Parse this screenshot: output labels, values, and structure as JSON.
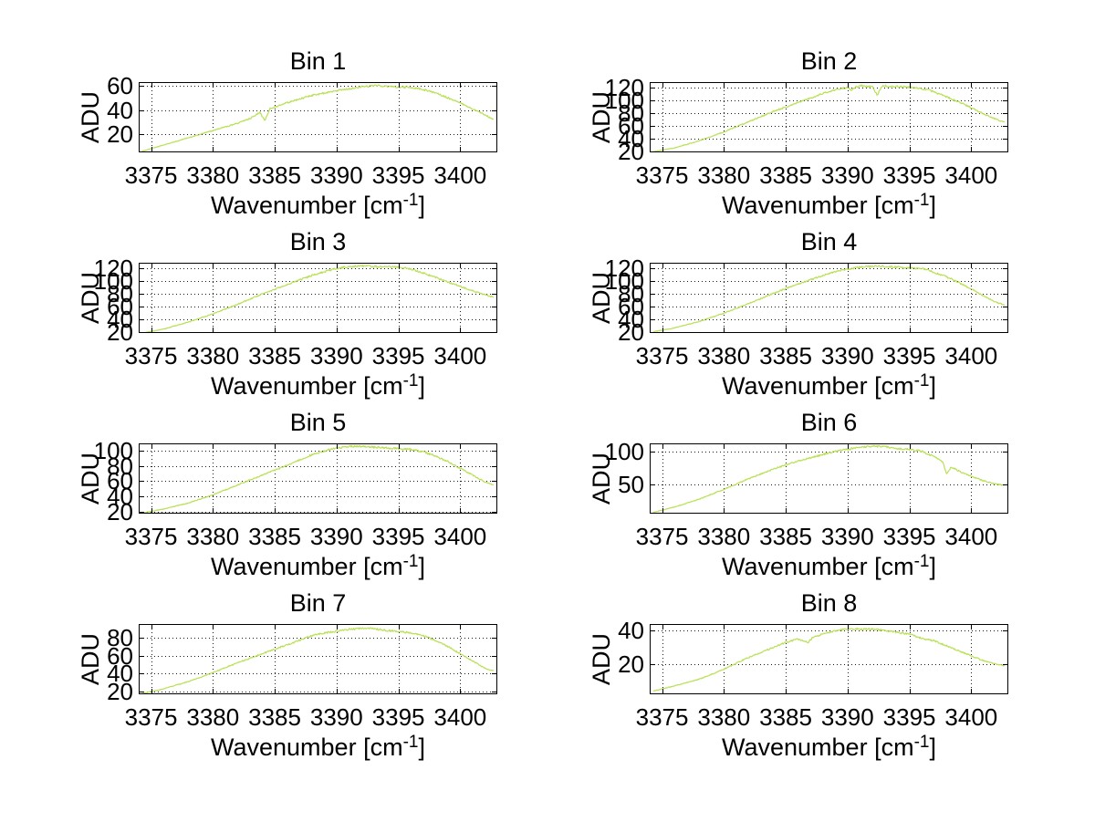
{
  "figure": {
    "background": "#ffffff",
    "curve_color": "#b8e054",
    "axis_color": "#000000",
    "grid_color": "#1a1a1a"
  },
  "chart_data": {
    "type": "line",
    "layout": "4 rows x 2 columns of subplots",
    "ylabel": "ADU",
    "xlabel_main": "Wavenumber [cm",
    "xlabel_sup": "-1",
    "xlabel_end": "]",
    "x_domain": [
      3374,
      3403
    ],
    "x_ticks": [
      3375,
      3380,
      3385,
      3390,
      3395,
      3400
    ],
    "grid": true,
    "legend": "none",
    "subplots": [
      {
        "title": "Bin 1",
        "y_ticks": [
          20,
          40,
          60
        ],
        "ylim": [
          5,
          63
        ],
        "anchors": [
          [
            3374.3,
            6
          ],
          [
            3376,
            11
          ],
          [
            3378,
            17
          ],
          [
            3380,
            23
          ],
          [
            3382,
            29
          ],
          [
            3383,
            33
          ],
          [
            3383.8,
            38
          ],
          [
            3384.2,
            31
          ],
          [
            3384.6,
            41
          ],
          [
            3386,
            46
          ],
          [
            3388,
            52
          ],
          [
            3390,
            56
          ],
          [
            3392,
            59
          ],
          [
            3393,
            60
          ],
          [
            3394,
            59.5
          ],
          [
            3395,
            59
          ],
          [
            3396,
            58.5
          ],
          [
            3397,
            57
          ],
          [
            3398,
            54
          ],
          [
            3399,
            50
          ],
          [
            3400,
            46
          ],
          [
            3401,
            41
          ],
          [
            3402,
            36
          ],
          [
            3402.7,
            32
          ]
        ]
      },
      {
        "title": "Bin 2",
        "y_ticks": [
          20,
          40,
          60,
          80,
          100,
          120
        ],
        "ylim": [
          18,
          128
        ],
        "anchors": [
          [
            3374.3,
            19
          ],
          [
            3376,
            25
          ],
          [
            3378,
            36
          ],
          [
            3380,
            50
          ],
          [
            3382,
            66
          ],
          [
            3384,
            82
          ],
          [
            3386,
            96
          ],
          [
            3388,
            110
          ],
          [
            3389,
            116
          ],
          [
            3390,
            120
          ],
          [
            3390.3,
            115
          ],
          [
            3390.6,
            120
          ],
          [
            3391,
            122
          ],
          [
            3392,
            121
          ],
          [
            3392.4,
            108
          ],
          [
            3392.8,
            121
          ],
          [
            3393,
            122
          ],
          [
            3394,
            121
          ],
          [
            3395,
            120
          ],
          [
            3396,
            118
          ],
          [
            3396.5,
            116
          ],
          [
            3398,
            105
          ],
          [
            3399,
            97
          ],
          [
            3400,
            88
          ],
          [
            3401,
            78
          ],
          [
            3402,
            70
          ],
          [
            3402.7,
            65
          ]
        ]
      },
      {
        "title": "Bin 3",
        "y_ticks": [
          20,
          40,
          60,
          80,
          100,
          120
        ],
        "ylim": [
          18,
          128
        ],
        "anchors": [
          [
            3374.3,
            18
          ],
          [
            3376,
            24
          ],
          [
            3378,
            35
          ],
          [
            3380,
            48
          ],
          [
            3382,
            63
          ],
          [
            3384,
            79
          ],
          [
            3386,
            94
          ],
          [
            3387,
            101
          ],
          [
            3388,
            108
          ],
          [
            3389,
            114
          ],
          [
            3390,
            119
          ],
          [
            3391,
            122
          ],
          [
            3392,
            123
          ],
          [
            3393,
            122
          ],
          [
            3394,
            122
          ],
          [
            3395,
            121
          ],
          [
            3396,
            118
          ],
          [
            3397,
            112
          ],
          [
            3398,
            105
          ],
          [
            3399,
            98
          ],
          [
            3400,
            91
          ],
          [
            3401,
            84
          ],
          [
            3402,
            78
          ],
          [
            3402.7,
            74
          ]
        ]
      },
      {
        "title": "Bin 4",
        "y_ticks": [
          20,
          40,
          60,
          80,
          100,
          120
        ],
        "ylim": [
          18,
          128
        ],
        "anchors": [
          [
            3374.3,
            20
          ],
          [
            3376,
            26
          ],
          [
            3378,
            36
          ],
          [
            3380,
            49
          ],
          [
            3382,
            64
          ],
          [
            3384,
            80
          ],
          [
            3386,
            95
          ],
          [
            3388,
            108
          ],
          [
            3389,
            114
          ],
          [
            3390,
            118
          ],
          [
            3391,
            121
          ],
          [
            3392,
            122
          ],
          [
            3392.5,
            123
          ],
          [
            3393,
            122
          ],
          [
            3394,
            121
          ],
          [
            3395,
            120
          ],
          [
            3396,
            119
          ],
          [
            3396.5,
            117
          ],
          [
            3397,
            113
          ],
          [
            3398,
            106
          ],
          [
            3399,
            97
          ],
          [
            3400,
            87
          ],
          [
            3401,
            76
          ],
          [
            3402,
            66
          ],
          [
            3402.7,
            62
          ]
        ]
      },
      {
        "title": "Bin 5",
        "y_ticks": [
          20,
          40,
          60,
          80,
          100
        ],
        "ylim": [
          17,
          110
        ],
        "anchors": [
          [
            3374.3,
            18
          ],
          [
            3376,
            23
          ],
          [
            3378,
            31
          ],
          [
            3380,
            42
          ],
          [
            3382,
            55
          ],
          [
            3384,
            68
          ],
          [
            3386,
            81
          ],
          [
            3387,
            88
          ],
          [
            3388,
            95
          ],
          [
            3389,
            100
          ],
          [
            3390,
            104
          ],
          [
            3391,
            106
          ],
          [
            3392,
            106
          ],
          [
            3393,
            105
          ],
          [
            3394,
            104
          ],
          [
            3395,
            103
          ],
          [
            3396,
            102
          ],
          [
            3397,
            99
          ],
          [
            3398,
            93
          ],
          [
            3399,
            86
          ],
          [
            3400,
            77
          ],
          [
            3401,
            68
          ],
          [
            3402,
            59
          ],
          [
            3402.7,
            55
          ]
        ]
      },
      {
        "title": "Bin 6",
        "y_ticks": [
          50,
          100
        ],
        "ylim": [
          5,
          112
        ],
        "anchors": [
          [
            3374.3,
            7
          ],
          [
            3376,
            15
          ],
          [
            3378,
            27
          ],
          [
            3380,
            42
          ],
          [
            3382,
            58
          ],
          [
            3384,
            73
          ],
          [
            3386,
            85
          ],
          [
            3388,
            95
          ],
          [
            3389,
            100
          ],
          [
            3390,
            103
          ],
          [
            3391,
            106
          ],
          [
            3392,
            108
          ],
          [
            3393,
            107
          ],
          [
            3394,
            104
          ],
          [
            3395,
            103
          ],
          [
            3396,
            100
          ],
          [
            3397,
            92
          ],
          [
            3397.7,
            83
          ],
          [
            3398,
            66
          ],
          [
            3398.4,
            76
          ],
          [
            3399,
            70
          ],
          [
            3400,
            62
          ],
          [
            3401,
            55
          ],
          [
            3402,
            50
          ],
          [
            3402.7,
            48
          ]
        ]
      },
      {
        "title": "Bin 7",
        "y_ticks": [
          20,
          40,
          60,
          80
        ],
        "ylim": [
          17,
          95
        ],
        "anchors": [
          [
            3374.3,
            18
          ],
          [
            3376,
            23
          ],
          [
            3378,
            31
          ],
          [
            3380,
            41
          ],
          [
            3382,
            52
          ],
          [
            3384,
            62
          ],
          [
            3386,
            72
          ],
          [
            3387,
            77
          ],
          [
            3388,
            82
          ],
          [
            3389,
            85
          ],
          [
            3390,
            87
          ],
          [
            3391,
            89
          ],
          [
            3392,
            90
          ],
          [
            3393,
            90
          ],
          [
            3394,
            88
          ],
          [
            3395,
            87
          ],
          [
            3396,
            85
          ],
          [
            3397,
            82
          ],
          [
            3398,
            77
          ],
          [
            3399,
            70
          ],
          [
            3400,
            62
          ],
          [
            3401,
            54
          ],
          [
            3402,
            46
          ],
          [
            3402.7,
            43
          ]
        ]
      },
      {
        "title": "Bin 8",
        "y_ticks": [
          20,
          40
        ],
        "ylim": [
          2,
          44
        ],
        "anchors": [
          [
            3374.3,
            4
          ],
          [
            3376,
            7
          ],
          [
            3378,
            11
          ],
          [
            3380,
            17
          ],
          [
            3382,
            24
          ],
          [
            3384,
            30
          ],
          [
            3385,
            33
          ],
          [
            3386,
            35
          ],
          [
            3386.8,
            33
          ],
          [
            3387.2,
            36
          ],
          [
            3388,
            38
          ],
          [
            3389,
            40
          ],
          [
            3390,
            41
          ],
          [
            3391,
            41
          ],
          [
            3392,
            41
          ],
          [
            3393,
            40
          ],
          [
            3394,
            39
          ],
          [
            3395,
            38
          ],
          [
            3395.8,
            36
          ],
          [
            3396.2,
            35
          ],
          [
            3397,
            34
          ],
          [
            3398,
            31
          ],
          [
            3399,
            28
          ],
          [
            3400,
            25
          ],
          [
            3401,
            22
          ],
          [
            3402,
            20
          ],
          [
            3402.7,
            19
          ]
        ]
      }
    ]
  }
}
